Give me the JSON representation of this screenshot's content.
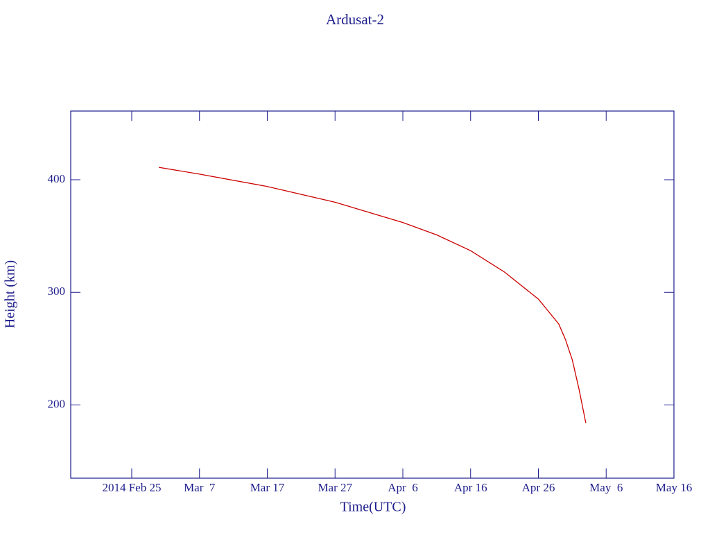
{
  "chart_data": {
    "type": "line",
    "title": "Ardusat-2",
    "x_label": "Time(UTC)",
    "y_label": "Height (km)",
    "x": [
      "2014-03-01",
      "2014-03-07",
      "2014-03-17",
      "2014-03-27",
      "2014-04-06",
      "2014-04-11",
      "2014-04-16",
      "2014-04-21",
      "2014-04-26",
      "2014-04-29",
      "2014-04-30",
      "2014-05-01",
      "2014-05-02",
      "2014-05-03"
    ],
    "series": [
      {
        "name": "Ardusat-2",
        "color": "#cc0000",
        "values": [
          411,
          405,
          394,
          380,
          362,
          351,
          337,
          318,
          294,
          272,
          258,
          240,
          214,
          184
        ]
      }
    ],
    "xlim": [
      "2014-02-16",
      "2014-05-16"
    ],
    "xticks": [
      {
        "value": "2014-02-25",
        "label": "2014 Feb 25"
      },
      {
        "value": "2014-03-07",
        "label": "Mar  7"
      },
      {
        "value": "2014-03-17",
        "label": "Mar 17"
      },
      {
        "value": "2014-03-27",
        "label": "Mar 27"
      },
      {
        "value": "2014-04-06",
        "label": "Apr  6"
      },
      {
        "value": "2014-04-16",
        "label": "Apr 16"
      },
      {
        "value": "2014-04-26",
        "label": "Apr 26"
      },
      {
        "value": "2014-05-06",
        "label": "May  6"
      },
      {
        "value": "2014-05-16",
        "label": "May 16"
      }
    ],
    "ylim": [
      135,
      461
    ],
    "yticks": [
      200,
      300,
      400
    ],
    "axis_color": "#1c1c8c"
  }
}
